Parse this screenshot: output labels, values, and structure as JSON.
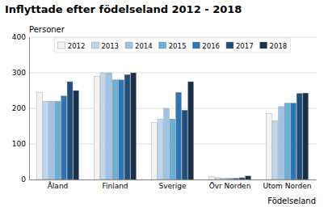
{
  "chart_data": {
    "type": "bar",
    "title": "Inflyttade efter födelseland 2012 - 2018",
    "xlabel": "Födelseland",
    "ylabel": "Personer",
    "categories": [
      "Åland",
      "Finland",
      "Sverige",
      "Övr Norden",
      "Utom Norden"
    ],
    "series": [
      {
        "name": "2012",
        "color": "#f2f2f2",
        "values": [
          245,
          290,
          160,
          8,
          185
        ]
      },
      {
        "name": "2013",
        "color": "#bdd7ee",
        "values": [
          220,
          300,
          170,
          5,
          165
        ]
      },
      {
        "name": "2014",
        "color": "#9dc3e6",
        "values": [
          220,
          300,
          200,
          4,
          205
        ]
      },
      {
        "name": "2015",
        "color": "#6aafd6",
        "values": [
          220,
          280,
          170,
          4,
          215
        ]
      },
      {
        "name": "2016",
        "color": "#2e75b6",
        "values": [
          235,
          280,
          245,
          4,
          215
        ]
      },
      {
        "name": "2017",
        "color": "#1f4e79",
        "values": [
          275,
          295,
          195,
          5,
          242
        ]
      },
      {
        "name": "2018",
        "color": "#1a2f4a",
        "values": [
          250,
          300,
          275,
          10,
          243
        ]
      }
    ],
    "ylim": [
      0,
      400
    ],
    "yticks": [
      0,
      100,
      200,
      300,
      400
    ],
    "grid": true,
    "legend": "top"
  }
}
